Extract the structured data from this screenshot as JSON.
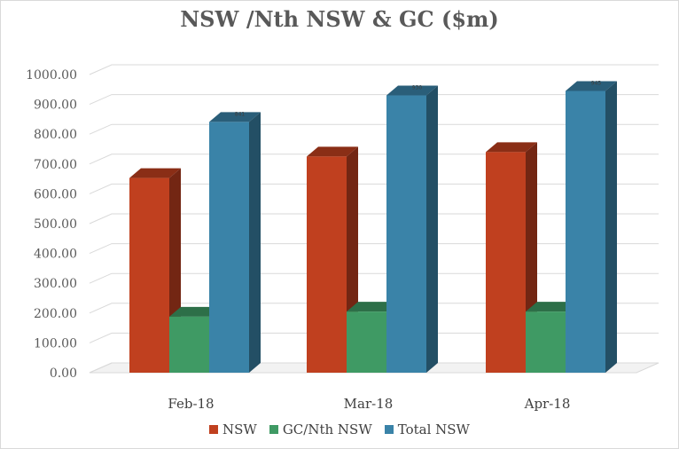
{
  "chart_data": {
    "type": "bar",
    "title": "NSW /Nth NSW & GC ($m)",
    "categories": [
      "Feb-18",
      "Mar-18",
      "Apr-18"
    ],
    "series": [
      {
        "name": "NSW",
        "color": "#c0401f",
        "values": [
          653,
          725,
          740
        ]
      },
      {
        "name": "GC/Nth NSW",
        "color": "#3f9a64",
        "values": [
          188,
          205,
          205
        ]
      },
      {
        "name": "Total NSW",
        "color": "#3a83a8",
        "values": [
          841,
          930,
          945
        ]
      }
    ],
    "data_labels": [
      "841",
      "930",
      "945"
    ],
    "ylim": [
      0,
      1000
    ],
    "yticks": [
      "0.00",
      "100.00",
      "200.00",
      "300.00",
      "400.00",
      "500.00",
      "600.00",
      "700.00",
      "800.00",
      "900.00",
      "1000.00"
    ],
    "grid": true,
    "legend": "bottom",
    "style": "3d-clustered"
  }
}
